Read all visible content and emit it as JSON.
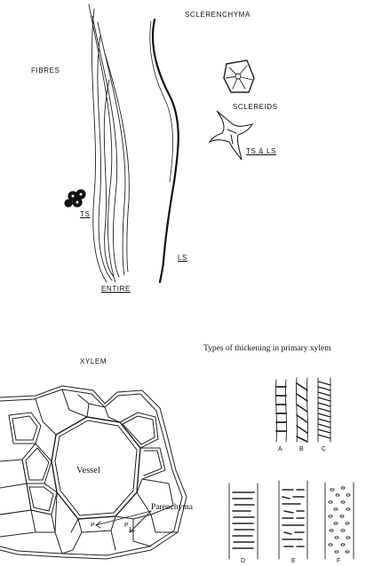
{
  "labels": {
    "sclerenchyma": "SCLERENCHYMA",
    "fibres": "FIBRES",
    "sclereids": "SCLEREIDS",
    "ts_ls": "TS & LS",
    "ts": "TS",
    "ls": "LS",
    "entire": "ENTIRE",
    "xylem": "XYLEM",
    "thickening_title": "Types of thickening in primary xylem",
    "vessel": "Vessel",
    "parenchyma": "Parenchyma",
    "p1": "P",
    "p2": "P",
    "types": [
      "A",
      "B",
      "C",
      "D",
      "E",
      "F"
    ]
  }
}
